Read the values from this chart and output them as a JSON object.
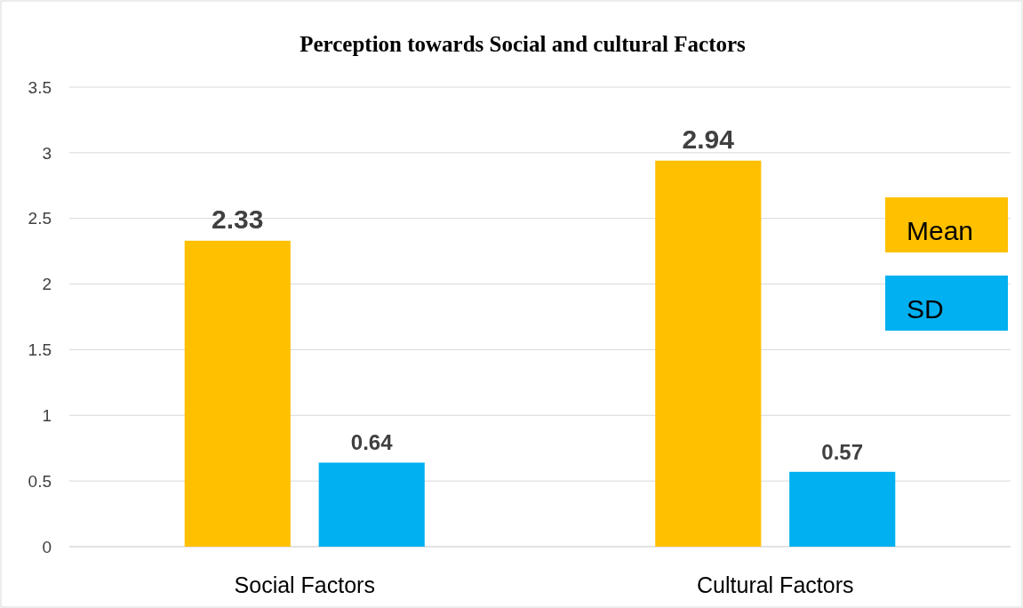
{
  "chart_data": {
    "type": "bar",
    "title": "Perception towards Social and cultural Factors",
    "categories": [
      "Social Factors",
      "Cultural Factors"
    ],
    "series": [
      {
        "name": "Mean",
        "color": "#ffc000",
        "values": [
          2.33,
          2.94
        ]
      },
      {
        "name": "SD",
        "color": "#00b0f0",
        "values": [
          0.64,
          0.57
        ]
      }
    ],
    "ylim": [
      0,
      3.5
    ],
    "yticks": [
      0,
      0.5,
      1,
      1.5,
      2,
      2.5,
      3,
      3.5
    ],
    "grid": "y",
    "legend": "right",
    "data_labels": true
  }
}
